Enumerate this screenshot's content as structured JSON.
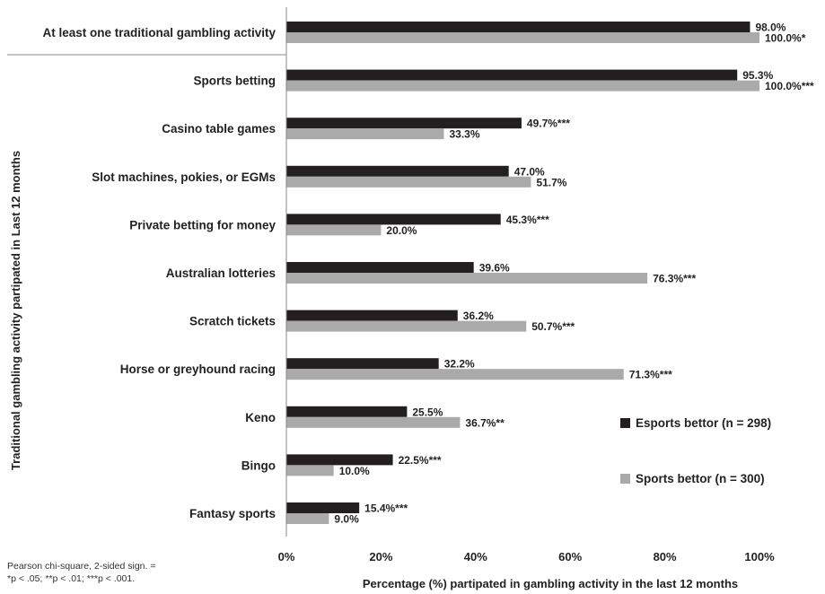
{
  "chart_data": {
    "type": "bar",
    "orientation": "horizontal",
    "categories": [
      "At least one traditional gambling activity",
      "Sports betting",
      "Casino table games",
      "Slot machines, pokies, or EGMs",
      "Private betting for money",
      "Australian lotteries",
      "Scratch tickets",
      "Horse or greyhound racing",
      "Keno",
      "Bingo",
      "Fantasy sports"
    ],
    "series": [
      {
        "name": "Esports bettor (n = 298)",
        "color": "#231f20",
        "values": [
          98.0,
          95.3,
          49.7,
          47.0,
          45.3,
          39.6,
          36.2,
          32.2,
          25.5,
          22.5,
          15.4
        ],
        "labels": [
          "98.0%",
          "95.3%",
          "49.7%***",
          "47.0%",
          "45.3%***",
          "39.6%",
          "36.2%",
          "32.2%",
          "25.5%",
          "22.5%***",
          "15.4%***"
        ]
      },
      {
        "name": "Sports bettor (n = 300)",
        "color": "#aaaaaa",
        "values": [
          100.0,
          100.0,
          33.3,
          51.7,
          20.0,
          76.3,
          50.7,
          71.3,
          36.7,
          10.0,
          9.0
        ],
        "labels": [
          "100.0%*",
          "100.0%***",
          "33.3%",
          "51.7%",
          "20.0%",
          "76.3%***",
          "50.7%***",
          "71.3%***",
          "36.7%**",
          "10.0%",
          "9.0%"
        ]
      }
    ],
    "xlim": [
      0,
      100
    ],
    "xticks": [
      "0%",
      "20%",
      "40%",
      "60%",
      "80%",
      "100%"
    ],
    "xlabel": "Percentage (%) partipated in gambling activity in the last 12 months",
    "ylabel": "Traditional gambling activity partipated in Last 12 months",
    "legend_position": "bottom-right",
    "note_line1": "Pearson chi-square, 2-sided sign. =",
    "note_line2": "*p < .05; **p < .01; ***p < .001."
  }
}
